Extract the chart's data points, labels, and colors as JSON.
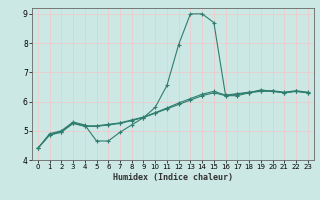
{
  "xlabel": "Humidex (Indice chaleur)",
  "bg_color": "#cce8e4",
  "grid_color": "#e8d0d0",
  "line_color": "#2e7d6e",
  "xlim": [
    -0.5,
    23.5
  ],
  "ylim": [
    4.0,
    9.2
  ],
  "yticks": [
    4,
    5,
    6,
    7,
    8,
    9
  ],
  "xticks": [
    0,
    1,
    2,
    3,
    4,
    5,
    6,
    7,
    8,
    9,
    10,
    11,
    12,
    13,
    14,
    15,
    16,
    17,
    18,
    19,
    20,
    21,
    22,
    23
  ],
  "series1_x": [
    0,
    1,
    2,
    3,
    4,
    5,
    6,
    7,
    8,
    9,
    10,
    11,
    12,
    13,
    14,
    15,
    16,
    17,
    18,
    19,
    20,
    21,
    22,
    23
  ],
  "series1_y": [
    4.4,
    4.9,
    5.0,
    5.3,
    5.2,
    4.65,
    4.65,
    4.95,
    5.2,
    5.45,
    5.8,
    6.55,
    7.95,
    9.0,
    9.0,
    8.7,
    6.2,
    6.2,
    6.3,
    6.4,
    6.35,
    6.3,
    6.35,
    6.3
  ],
  "series2_x": [
    0,
    1,
    2,
    3,
    4,
    5,
    6,
    7,
    8,
    9,
    10,
    11,
    12,
    13,
    14,
    15,
    16,
    17,
    18,
    19,
    20,
    21,
    22,
    23
  ],
  "series2_y": [
    4.4,
    4.85,
    4.95,
    5.25,
    5.15,
    5.15,
    5.2,
    5.25,
    5.35,
    5.45,
    5.6,
    5.75,
    5.9,
    6.05,
    6.2,
    6.3,
    6.2,
    6.25,
    6.3,
    6.35,
    6.35,
    6.3,
    6.35,
    6.3
  ],
  "series3_x": [
    0,
    1,
    2,
    3,
    4,
    5,
    6,
    7,
    8,
    9,
    10,
    11,
    12,
    13,
    14,
    15,
    16,
    17,
    18,
    19,
    20,
    21,
    22,
    23
  ],
  "series3_y": [
    4.4,
    4.87,
    4.97,
    5.27,
    5.17,
    5.17,
    5.22,
    5.27,
    5.37,
    5.47,
    5.62,
    5.78,
    5.95,
    6.1,
    6.25,
    6.35,
    6.22,
    6.27,
    6.32,
    6.37,
    6.37,
    6.32,
    6.37,
    6.32
  ],
  "xlabel_fontsize": 6.0,
  "tick_fontsize": 5.5,
  "tick_fontsize_x": 5.0
}
